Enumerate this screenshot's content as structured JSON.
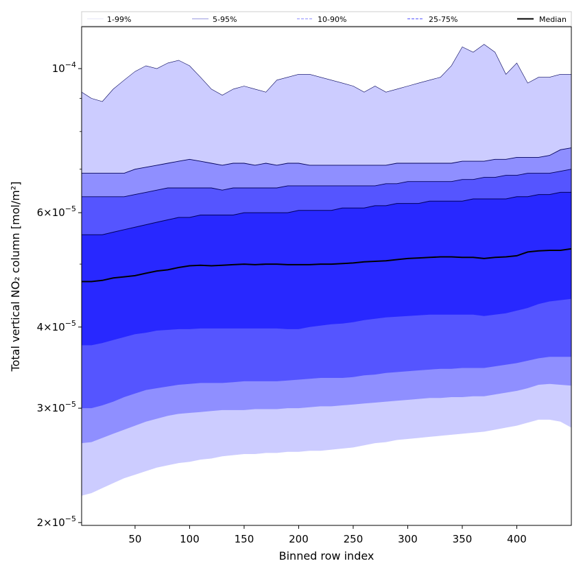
{
  "chart_data": {
    "type": "area",
    "xlabel": "Binned row index",
    "ylabel": "Total vertical NO₂ column [mol/m²]",
    "yscale": "log",
    "xlim": [
      1,
      450
    ],
    "ylim": [
      1.98e-05,
      0.000116
    ],
    "x_ticks": [
      50,
      100,
      150,
      200,
      250,
      300,
      350,
      400
    ],
    "y_major_ticks": [
      {
        "value": 2e-05,
        "mantissa": "2",
        "exponent": "−5"
      },
      {
        "value": 3e-05,
        "mantissa": "3",
        "exponent": "−5"
      },
      {
        "value": 4e-05,
        "mantissa": "4",
        "exponent": "−5"
      },
      {
        "value": 6e-05,
        "mantissa": "6",
        "exponent": "−5"
      },
      {
        "value": 0.0001,
        "mantissa": "",
        "exponent": "−4"
      }
    ],
    "y_minor_ticks": [
      5e-05,
      7e-05,
      8e-05,
      9e-05
    ],
    "legend": {
      "placement": "top",
      "entries": [
        {
          "label": "1-99%",
          "color": "#e6e6f7",
          "style": "solid"
        },
        {
          "label": "5-95%",
          "color": "#9a9ae0",
          "style": "solid"
        },
        {
          "label": "10-90%",
          "color": "#8c8cff",
          "style": "dashed"
        },
        {
          "label": "25-75%",
          "color": "#5555ff",
          "style": "dashed"
        },
        {
          "label": "Median",
          "color": "#000000",
          "style": "solid"
        }
      ]
    },
    "band_colors": {
      "p1_99": "#ccccff",
      "p5_95": "#8f8fff",
      "p10_90": "#5555ff",
      "p25_75": "#2828ff",
      "median": "#000000",
      "outline": "#00005a"
    },
    "x": [
      1,
      10,
      20,
      30,
      40,
      50,
      60,
      70,
      80,
      90,
      100,
      110,
      120,
      130,
      140,
      150,
      160,
      170,
      180,
      190,
      200,
      210,
      220,
      230,
      240,
      250,
      260,
      270,
      280,
      290,
      300,
      310,
      320,
      330,
      340,
      350,
      360,
      370,
      380,
      390,
      400,
      410,
      420,
      430,
      440,
      450
    ],
    "series": [
      {
        "name": "p99",
        "values": [
          9.2e-05,
          9e-05,
          8.9e-05,
          9.3e-05,
          9.6e-05,
          9.9e-05,
          0.000101,
          0.0001,
          0.000102,
          0.000103,
          0.000101,
          9.7e-05,
          9.3e-05,
          9.1e-05,
          9.3e-05,
          9.4e-05,
          9.3e-05,
          9.2e-05,
          9.6e-05,
          9.7e-05,
          9.8e-05,
          9.8e-05,
          9.7e-05,
          9.6e-05,
          9.5e-05,
          9.4e-05,
          9.2e-05,
          9.4e-05,
          9.2e-05,
          9.3e-05,
          9.4e-05,
          9.5e-05,
          9.6e-05,
          9.7e-05,
          0.000101,
          0.000108,
          0.000106,
          0.000109,
          0.000106,
          9.8e-05,
          0.000102,
          9.5e-05,
          9.7e-05,
          9.7e-05,
          9.8e-05,
          9.8e-05
        ]
      },
      {
        "name": "p95",
        "values": [
          6.9e-05,
          6.9e-05,
          6.9e-05,
          6.9e-05,
          6.9e-05,
          7e-05,
          7.05e-05,
          7.1e-05,
          7.15e-05,
          7.2e-05,
          7.25e-05,
          7.2e-05,
          7.15e-05,
          7.1e-05,
          7.15e-05,
          7.15e-05,
          7.1e-05,
          7.15e-05,
          7.1e-05,
          7.15e-05,
          7.15e-05,
          7.1e-05,
          7.1e-05,
          7.1e-05,
          7.1e-05,
          7.1e-05,
          7.1e-05,
          7.1e-05,
          7.1e-05,
          7.15e-05,
          7.15e-05,
          7.15e-05,
          7.15e-05,
          7.15e-05,
          7.15e-05,
          7.2e-05,
          7.2e-05,
          7.2e-05,
          7.25e-05,
          7.25e-05,
          7.3e-05,
          7.3e-05,
          7.3e-05,
          7.35e-05,
          7.5e-05,
          7.55e-05
        ]
      },
      {
        "name": "p90",
        "values": [
          6.35e-05,
          6.35e-05,
          6.35e-05,
          6.35e-05,
          6.35e-05,
          6.4e-05,
          6.45e-05,
          6.5e-05,
          6.55e-05,
          6.55e-05,
          6.55e-05,
          6.55e-05,
          6.55e-05,
          6.5e-05,
          6.55e-05,
          6.55e-05,
          6.55e-05,
          6.55e-05,
          6.55e-05,
          6.6e-05,
          6.6e-05,
          6.6e-05,
          6.6e-05,
          6.6e-05,
          6.6e-05,
          6.6e-05,
          6.6e-05,
          6.6e-05,
          6.65e-05,
          6.65e-05,
          6.7e-05,
          6.7e-05,
          6.7e-05,
          6.7e-05,
          6.7e-05,
          6.75e-05,
          6.75e-05,
          6.8e-05,
          6.8e-05,
          6.85e-05,
          6.85e-05,
          6.9e-05,
          6.9e-05,
          6.9e-05,
          6.95e-05,
          7e-05
        ]
      },
      {
        "name": "p75",
        "values": [
          5.55e-05,
          5.55e-05,
          5.55e-05,
          5.6e-05,
          5.65e-05,
          5.7e-05,
          5.75e-05,
          5.8e-05,
          5.85e-05,
          5.9e-05,
          5.9e-05,
          5.95e-05,
          5.95e-05,
          5.95e-05,
          5.95e-05,
          6e-05,
          6e-05,
          6e-05,
          6e-05,
          6e-05,
          6.05e-05,
          6.05e-05,
          6.05e-05,
          6.05e-05,
          6.1e-05,
          6.1e-05,
          6.1e-05,
          6.15e-05,
          6.15e-05,
          6.2e-05,
          6.2e-05,
          6.2e-05,
          6.25e-05,
          6.25e-05,
          6.25e-05,
          6.25e-05,
          6.3e-05,
          6.3e-05,
          6.3e-05,
          6.3e-05,
          6.35e-05,
          6.35e-05,
          6.4e-05,
          6.4e-05,
          6.45e-05,
          6.45e-05
        ]
      },
      {
        "name": "median",
        "values": [
          4.7e-05,
          4.7e-05,
          4.72e-05,
          4.76e-05,
          4.78e-05,
          4.8e-05,
          4.84e-05,
          4.88e-05,
          4.9e-05,
          4.94e-05,
          4.97e-05,
          4.98e-05,
          4.97e-05,
          4.98e-05,
          4.99e-05,
          5e-05,
          4.99e-05,
          5e-05,
          5e-05,
          4.99e-05,
          4.99e-05,
          4.99e-05,
          5e-05,
          5e-05,
          5.01e-05,
          5.02e-05,
          5.04e-05,
          5.05e-05,
          5.06e-05,
          5.08e-05,
          5.1e-05,
          5.11e-05,
          5.12e-05,
          5.13e-05,
          5.13e-05,
          5.12e-05,
          5.12e-05,
          5.1e-05,
          5.12e-05,
          5.13e-05,
          5.15e-05,
          5.22e-05,
          5.24e-05,
          5.25e-05,
          5.25e-05,
          5.28e-05
        ]
      },
      {
        "name": "p25",
        "values": [
          3.75e-05,
          3.75e-05,
          3.78e-05,
          3.82e-05,
          3.86e-05,
          3.9e-05,
          3.92e-05,
          3.95e-05,
          3.96e-05,
          3.97e-05,
          3.97e-05,
          3.98e-05,
          3.98e-05,
          3.98e-05,
          3.98e-05,
          3.98e-05,
          3.98e-05,
          3.98e-05,
          3.98e-05,
          3.97e-05,
          3.97e-05,
          4e-05,
          4.02e-05,
          4.04e-05,
          4.05e-05,
          4.07e-05,
          4.1e-05,
          4.12e-05,
          4.14e-05,
          4.15e-05,
          4.16e-05,
          4.17e-05,
          4.18e-05,
          4.18e-05,
          4.18e-05,
          4.18e-05,
          4.18e-05,
          4.16e-05,
          4.18e-05,
          4.2e-05,
          4.24e-05,
          4.28e-05,
          4.34e-05,
          4.38e-05,
          4.4e-05,
          4.42e-05
        ]
      },
      {
        "name": "p10",
        "values": [
          3e-05,
          3e-05,
          3.03e-05,
          3.07e-05,
          3.12e-05,
          3.16e-05,
          3.2e-05,
          3.22e-05,
          3.24e-05,
          3.26e-05,
          3.27e-05,
          3.28e-05,
          3.28e-05,
          3.28e-05,
          3.29e-05,
          3.3e-05,
          3.3e-05,
          3.3e-05,
          3.3e-05,
          3.31e-05,
          3.32e-05,
          3.33e-05,
          3.34e-05,
          3.34e-05,
          3.34e-05,
          3.35e-05,
          3.37e-05,
          3.38e-05,
          3.4e-05,
          3.41e-05,
          3.42e-05,
          3.43e-05,
          3.44e-05,
          3.45e-05,
          3.45e-05,
          3.46e-05,
          3.46e-05,
          3.46e-05,
          3.48e-05,
          3.5e-05,
          3.52e-05,
          3.55e-05,
          3.58e-05,
          3.6e-05,
          3.6e-05,
          3.6e-05
        ]
      },
      {
        "name": "p5",
        "values": [
          2.65e-05,
          2.66e-05,
          2.7e-05,
          2.74e-05,
          2.78e-05,
          2.82e-05,
          2.86e-05,
          2.89e-05,
          2.92e-05,
          2.94e-05,
          2.95e-05,
          2.96e-05,
          2.97e-05,
          2.98e-05,
          2.98e-05,
          2.98e-05,
          2.99e-05,
          2.99e-05,
          2.99e-05,
          3e-05,
          3e-05,
          3.01e-05,
          3.02e-05,
          3.02e-05,
          3.03e-05,
          3.04e-05,
          3.05e-05,
          3.06e-05,
          3.07e-05,
          3.08e-05,
          3.09e-05,
          3.1e-05,
          3.11e-05,
          3.11e-05,
          3.12e-05,
          3.12e-05,
          3.13e-05,
          3.13e-05,
          3.15e-05,
          3.17e-05,
          3.19e-05,
          3.22e-05,
          3.26e-05,
          3.27e-05,
          3.26e-05,
          3.25e-05
        ]
      },
      {
        "name": "p1",
        "values": [
          2.2e-05,
          2.22e-05,
          2.26e-05,
          2.3e-05,
          2.34e-05,
          2.37e-05,
          2.4e-05,
          2.43e-05,
          2.45e-05,
          2.47e-05,
          2.48e-05,
          2.5e-05,
          2.51e-05,
          2.53e-05,
          2.54e-05,
          2.55e-05,
          2.55e-05,
          2.56e-05,
          2.56e-05,
          2.57e-05,
          2.57e-05,
          2.58e-05,
          2.58e-05,
          2.59e-05,
          2.6e-05,
          2.61e-05,
          2.63e-05,
          2.65e-05,
          2.66e-05,
          2.68e-05,
          2.69e-05,
          2.7e-05,
          2.71e-05,
          2.72e-05,
          2.73e-05,
          2.74e-05,
          2.75e-05,
          2.76e-05,
          2.78e-05,
          2.8e-05,
          2.82e-05,
          2.85e-05,
          2.88e-05,
          2.88e-05,
          2.86e-05,
          2.8e-05
        ]
      }
    ]
  }
}
